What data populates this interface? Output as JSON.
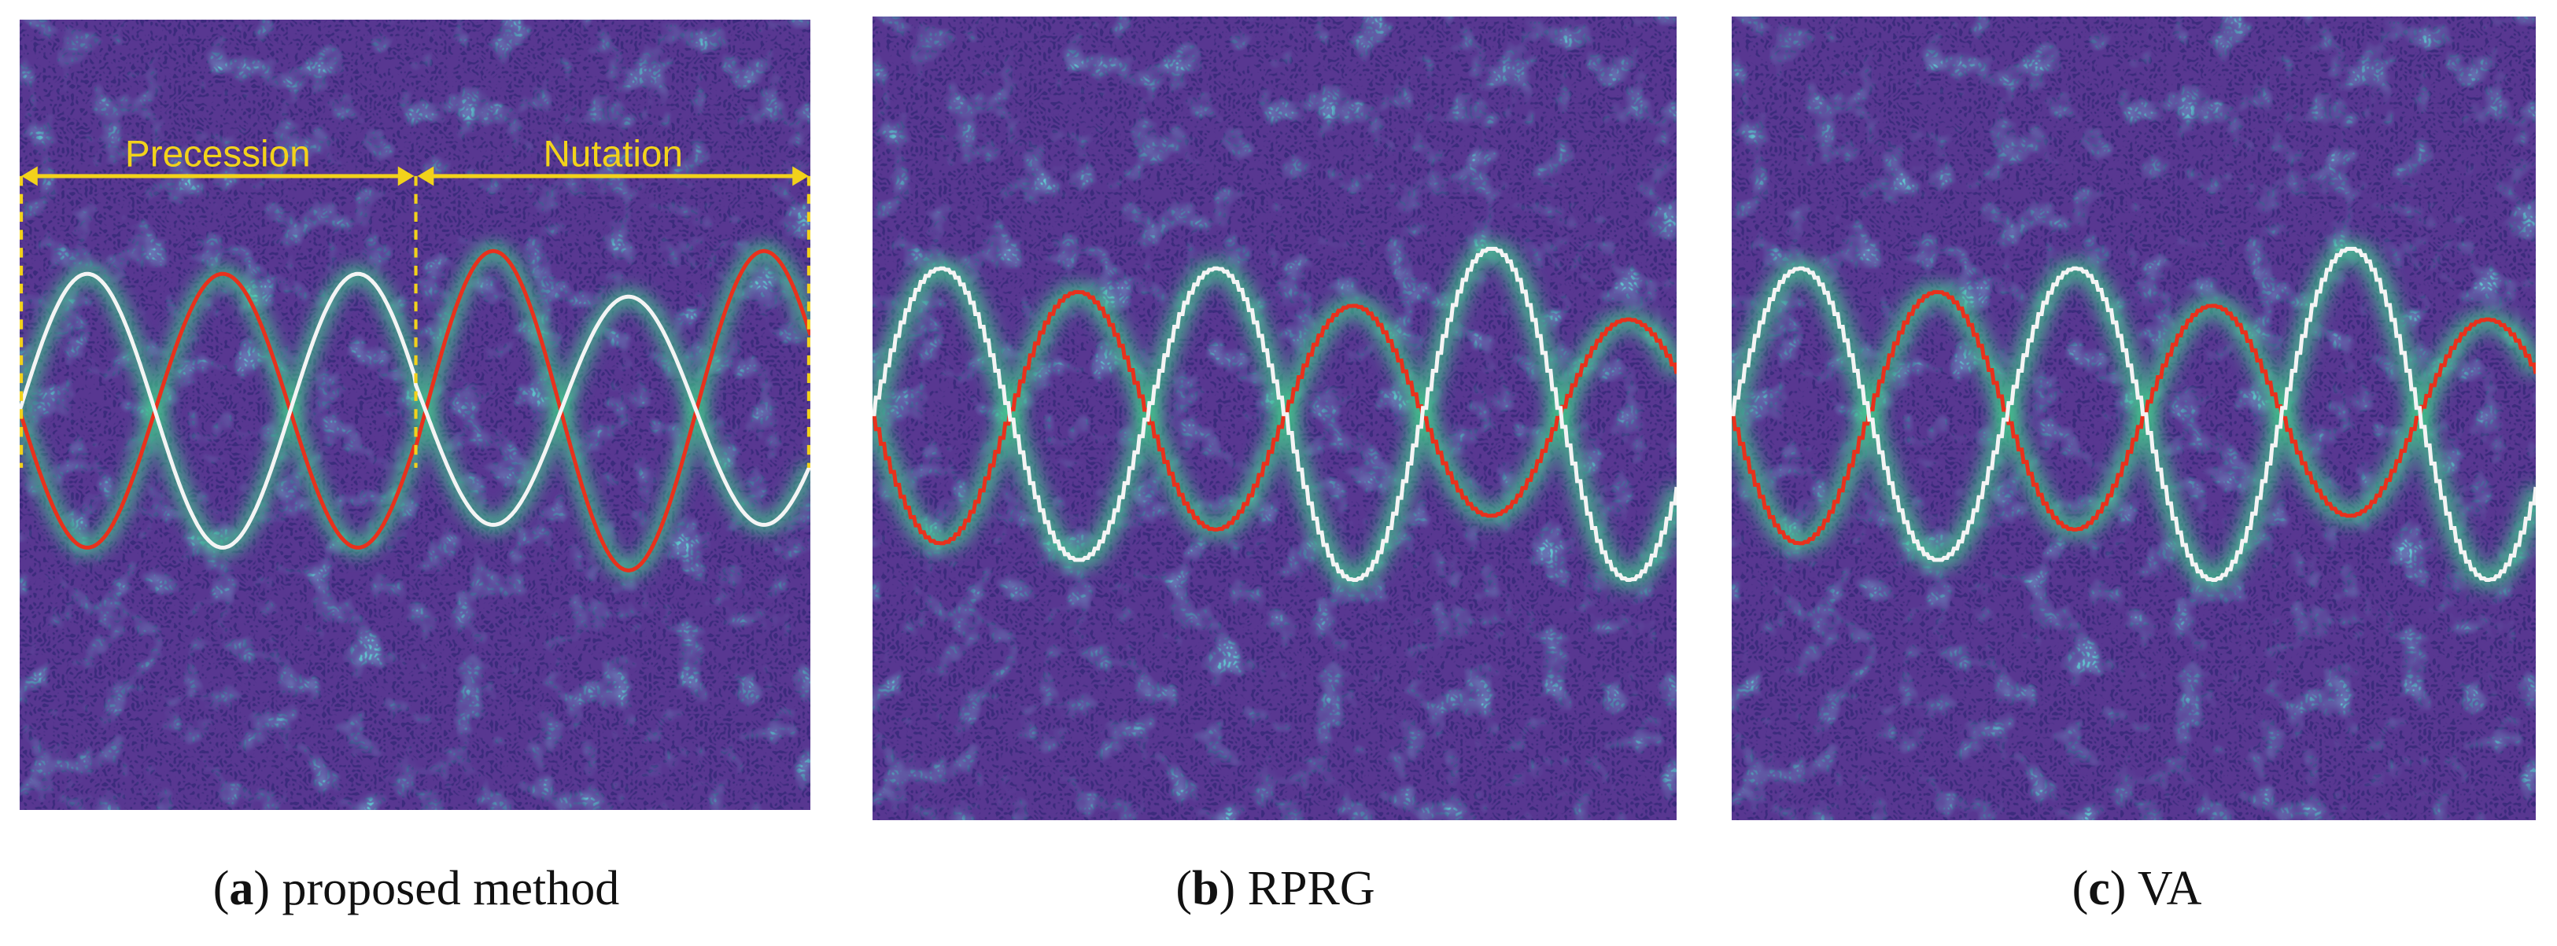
{
  "panels": [
    {
      "caption": [
        "(",
        "a",
        ") proposed method"
      ],
      "annotations": [
        "Precession",
        "Nutation"
      ]
    },
    {
      "caption": [
        "(",
        "b",
        ") RPRG"
      ]
    },
    {
      "caption": [
        "(",
        "c",
        ") VA"
      ]
    }
  ]
}
